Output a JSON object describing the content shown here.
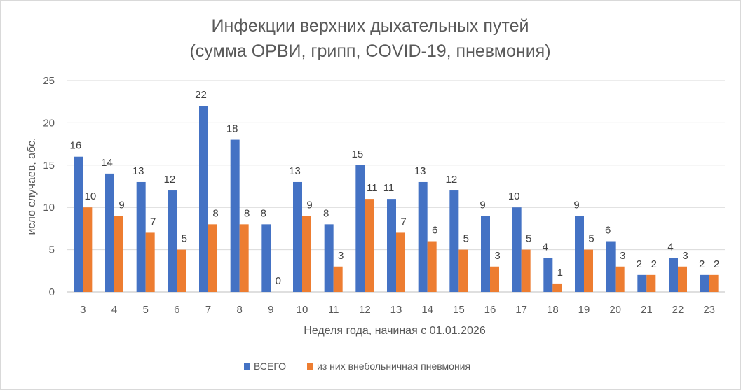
{
  "chart_data": {
    "type": "bar",
    "title_line1": "Инфекции верхних дыхательных путей",
    "title_line2": "(сумма ОРВИ, грипп, COVID-19, пневмония)",
    "xlabel": "Неделя года, начиная с 01.01.2026",
    "ylabel": "исло случаев, абс.",
    "ylim": [
      0,
      25
    ],
    "yticks": [
      0,
      5,
      10,
      15,
      20,
      25
    ],
    "grid": true,
    "legend_position": "bottom",
    "categories": [
      "3",
      "4",
      "5",
      "6",
      "7",
      "8",
      "9",
      "10",
      "11",
      "12",
      "13",
      "14",
      "15",
      "16",
      "17",
      "18",
      "19",
      "20",
      "21",
      "22",
      "23"
    ],
    "series": [
      {
        "name": "ВСЕГО",
        "color": "#4472C4",
        "values": [
          16,
          14,
          13,
          12,
          22,
          18,
          8,
          13,
          8,
          15,
          11,
          13,
          12,
          9,
          10,
          4,
          9,
          6,
          2,
          4,
          2
        ]
      },
      {
        "name": "из них внебольничная пневмония",
        "color": "#ED7D31",
        "values": [
          10,
          9,
          7,
          5,
          8,
          8,
          0,
          9,
          3,
          11,
          7,
          6,
          5,
          3,
          5,
          1,
          5,
          3,
          2,
          3,
          2
        ]
      }
    ]
  }
}
